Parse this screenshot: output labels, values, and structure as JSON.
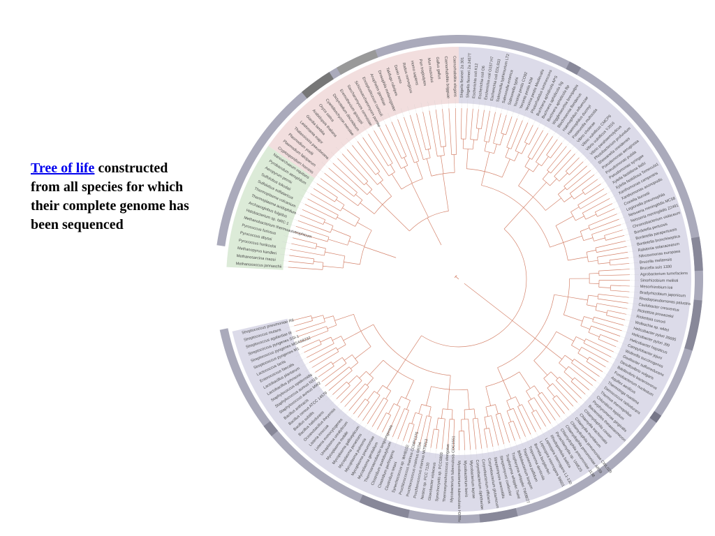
{
  "caption": {
    "link_text": "Tree of life",
    "rest_text": " constructed from all species for which their complete genome has been sequenced"
  },
  "colors": {
    "eukaryota_wedge": "#f2dede",
    "archaea_wedge": "#dcebd8",
    "bacteria_wedge": "#dcdbe9",
    "outer_ring": "#aaaabb",
    "branch": "#d4826a",
    "leader": "#c8c8c8",
    "link": "#0000ee"
  },
  "tree_labels": {
    "archaea": [
      "Methanococcus jannaschii",
      "Methanosarcina mazei",
      "Methanopyrus kandleri",
      "Pyrococcus horikoshii",
      "Pyrococcus abyssi",
      "Pyrococcus furiosus",
      "Methanobacterium thermoautotrophicum",
      "Halobacterium sp. NRC-1",
      "Archaeoglobus fulgidus",
      "Thermoplasma acidophilum",
      "Thermoplasma volcanium",
      "Sulfolobus solfataricus",
      "Sulfolobus tokodaii",
      "Aeropyrum pernix",
      "Pyrobaculum aerophilum",
      "Nanoarchaeum equitans"
    ],
    "bacteria": [
      "Shigella flexneri 2a 301",
      "Shigella flexneri 2a 2457T",
      "Escherichia coli K12",
      "Escherichia coli O6",
      "Escherichia coli O157:H7",
      "Escherichia coli EDL933",
      "Salmonella typhimurium LT2",
      "Salmonella enterica",
      "Salmonella typhi",
      "Yersinia pestis CO92",
      "Yersinia pestis KIM",
      "Yersinia pestis Medievalis",
      "Photorhabdus luminescens",
      "Buchnera aphidicola APS",
      "Buchnera aphidicola Sg",
      "Buchnera aphidicola Bp",
      "Wigglesworthia brevipalpis",
      "Blochmannia floridanus",
      "Haemophilus influenzae",
      "Haemophilus ducreyi",
      "Pasteurella multocida",
      "Vibrio cholerae",
      "Vibrio vulnificus CMCP6",
      "Vibrio vulnificus YJ016",
      "Vibrio parahaemolyticus",
      "Photobacterium profundum",
      "Shewanella oneidensis",
      "Pseudomonas aeruginosa",
      "Pseudomonas putida",
      "Pseudomonas syringae",
      "Xylella fastidiosa 9a5c",
      "Xylella fastidiosa Temecula1",
      "Xanthomonas campestris",
      "Xanthomonas axonopodis",
      "Coxiella burnetii",
      "Legionella pneumophila",
      "Neisseria meningitidis MC58",
      "Neisseria meningitidis Z2491",
      "Chromobacterium violaceum",
      "Bordetella pertussis",
      "Bordetella parapertussis",
      "Bordetella bronchiseptica",
      "Ralstonia solanacearum",
      "Nitrosomonas europaea",
      "Brucella melitensis",
      "Brucella suis 1330",
      "Agrobacterium tumefaciens",
      "Sinorhizobium meliloti",
      "Mesorhizobium loti",
      "Bradyrhizobium japonicum",
      "Rhodopseudomonas palustris",
      "Caulobacter crescentus",
      "Rickettsia prowazekii",
      "Rickettsia conorii",
      "Wolbachia sp. wMel",
      "Helicobacter pylori 26695",
      "Helicobacter pylori J99",
      "Helicobacter hepaticus",
      "Campylobacter jejuni",
      "Wolinella succinogenes",
      "Geobacter sulfurreducens",
      "Desulfovibrio vulgaris",
      "Bdellovibrio bacteriovorus",
      "Fusobacterium nucleatum",
      "Aquifex aeolicus",
      "Thermotoga maritima",
      "Deinococcus radiodurans",
      "Thermus thermophilus",
      "Chlorobium tepidum",
      "Porphyromonas gingivalis",
      "Bacteroides thetaiotaomicron",
      "Chlamydophila caviae",
      "Chlamydia trachomatis",
      "Chlamydia muridarum",
      "Chlamydophila pneumoniae CWL029",
      "Chlamydophila pneumoniae AR39",
      "Chlamydophila pneumoniae J138",
      "Parachlamydia sp. UWE25",
      "Rhodopirellula baltica",
      "Leptospira interrogans L1-130",
      "Leptospira interrogans 56601",
      "Borrelia burgdorferi",
      "Treponema denticola",
      "Treponema pallidum",
      "Bifidobacterium longum",
      "Tropheryma whipplei TW08/27",
      "Tropheryma whipplei Twist",
      "Streptomyces coelicolor",
      "Streptomyces avermitilis",
      "Corynebacterium glutamicum",
      "Corynebacterium efficiens",
      "Corynebacterium diphtheriae",
      "Mycobacterium leprae",
      "Mycobacterium bovis",
      "Mycobacterium tuberculosis H37Rv",
      "Mycobacterium tuberculosis CDC1551",
      "Thermosynechococcus elongatus",
      "Synechocystis sp. PCC6803",
      "Gloeobacter violaceus",
      "Nostoc sp. PCC 7120",
      "Prochlorococcus marinus MIT9313",
      "Prochlorococcus marinus MED4",
      "Prochlorococcus marinus CCMP1375",
      "Synechococcus sp. WH8102",
      "Clostridium tetani",
      "Clostridium perfringens",
      "Clostridium acetobutylicum",
      "Thermoanaerobacter tengcongensis",
      "Mycoplasma genitalium",
      "Mycoplasma pneumoniae",
      "Mycoplasma pulmonis",
      "Mycoplasma penetrans",
      "Mycoplasma gallisepticum",
      "Mycoplasma mobile",
      "Ureaplasma urealyticum",
      "Listeria monocytogenes",
      "Listeria innocua",
      "Oceanobacillus iheyensis",
      "Bacillus halodurans",
      "Bacillus subtilis",
      "Bacillus cereus ATCC 14579",
      "Bacillus anthracis",
      "Staphylococcus aureus MW2",
      "Staphylococcus aureus N315",
      "Staphylococcus epidermidis",
      "Lactobacillus johnsonii",
      "Lactobacillus plantarum",
      "Enterococcus faecalis",
      "Lactococcus lactis",
      "Streptococcus pyogenes M1",
      "Streptococcus pyogenes MGAS8232",
      "Streptococcus pyogenes SSI-1",
      "Streptococcus agalactiae III",
      "Streptococcus mutans",
      "Streptococcus pneumoniae R6"
    ],
    "eukaryota": [
      "Cryptosporidium hominis",
      "Plasmodium falciparum",
      "Plasmodium yoelii",
      "Thalassiosira pseudonana",
      "Leishmania major",
      "Giardia lamblia",
      "Arabidopsis thaliana",
      "Oryza sativa",
      "Cyanidioschyzon merolae",
      "Dictyostelium discoideum",
      "Eremothecium gossypii",
      "Saccharomyces cerevisiae",
      "Schizosaccharomyces pombe",
      "Encephalitozoon cuniculi",
      "Anopheles gambiae",
      "Drosophila melanogaster",
      "Takifugu rubripes",
      "Danio rerio",
      "Rattus norvegicus",
      "Homo sapiens",
      "Pan troglodytes",
      "Mus musculus",
      "Gallus gallus",
      "Caenorhabditis briggsae",
      "Caenorhabditis elegans"
    ]
  }
}
